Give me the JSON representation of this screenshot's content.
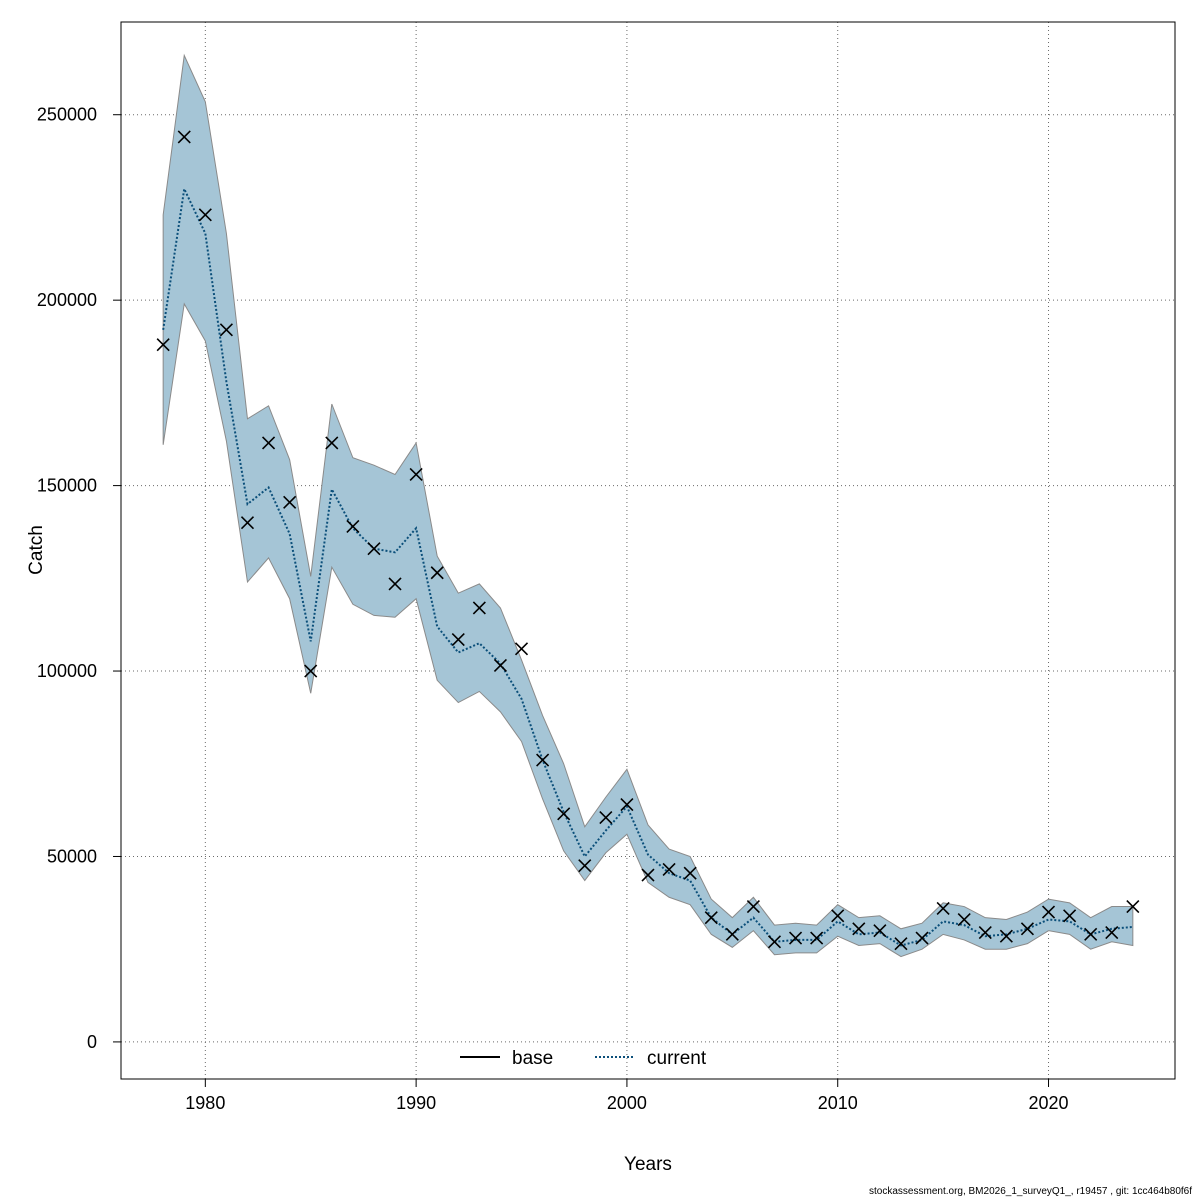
{
  "chart_data": {
    "type": "line",
    "title": "",
    "xlabel": "Years",
    "ylabel": "Catch",
    "xlim": [
      1976,
      2026
    ],
    "ylim": [
      -10000,
      275000
    ],
    "x_ticks": [
      1980,
      1990,
      2000,
      2010,
      2020
    ],
    "y_ticks": [
      0,
      50000,
      100000,
      150000,
      200000,
      250000
    ],
    "grid": true,
    "legend_position": "bottom-center",
    "years": [
      1978,
      1979,
      1980,
      1981,
      1982,
      1983,
      1984,
      1985,
      1986,
      1987,
      1988,
      1989,
      1990,
      1991,
      1992,
      1993,
      1994,
      1995,
      1996,
      1997,
      1998,
      1999,
      2000,
      2001,
      2002,
      2003,
      2004,
      2005,
      2006,
      2007,
      2008,
      2009,
      2010,
      2011,
      2012,
      2013,
      2014,
      2015,
      2016,
      2017,
      2018,
      2019,
      2020,
      2021,
      2022,
      2023,
      2024
    ],
    "observed": [
      188000,
      244000,
      223000,
      192000,
      140000,
      161500,
      145500,
      100000,
      161500,
      139000,
      133000,
      123500,
      153000,
      126500,
      108500,
      117000,
      101500,
      106000,
      76000,
      61500,
      47500,
      60500,
      64000,
      45000,
      46500,
      45500,
      33500,
      29000,
      36500,
      27000,
      28000,
      28000,
      34000,
      30500,
      30000,
      26500,
      28000,
      36000,
      33000,
      29500,
      28500,
      30500,
      35000,
      34000,
      29000,
      29500,
      36500
    ],
    "ci_upper": [
      223000,
      266000,
      253500,
      218000,
      168000,
      171500,
      157000,
      125500,
      172000,
      157500,
      155500,
      153000,
      161500,
      131000,
      121000,
      123500,
      117000,
      103000,
      88000,
      75000,
      58000,
      66000,
      73500,
      58500,
      52000,
      50000,
      38500,
      33500,
      39000,
      31500,
      32000,
      31500,
      37000,
      33500,
      34000,
      30500,
      32000,
      37500,
      36500,
      33500,
      33000,
      35000,
      38500,
      37500,
      33500,
      36500,
      36500
    ],
    "ci_lower": [
      161000,
      199000,
      189000,
      162000,
      124000,
      130500,
      119500,
      94000,
      128000,
      118000,
      115000,
      114500,
      119500,
      97500,
      91500,
      94500,
      89000,
      81000,
      65500,
      51500,
      43500,
      51000,
      56000,
      43000,
      39000,
      37000,
      29000,
      25500,
      30000,
      23500,
      24000,
      24000,
      28500,
      26000,
      26500,
      23000,
      25000,
      29000,
      27500,
      25000,
      25000,
      26500,
      30000,
      29000,
      25000,
      27000,
      26000
    ],
    "series": [
      {
        "name": "base",
        "color": "#000000",
        "dash": "solid",
        "values": []
      },
      {
        "name": "current",
        "color": "#0b4f7a",
        "dash": "dotted",
        "values": [
          192000,
          230000,
          218000,
          178000,
          145000,
          149500,
          137000,
          108000,
          149000,
          138500,
          133000,
          132000,
          138500,
          112000,
          105000,
          107500,
          102000,
          92500,
          76000,
          62000,
          50000,
          57000,
          63500,
          50500,
          45500,
          43500,
          33500,
          29000,
          33500,
          27000,
          27500,
          27500,
          32500,
          29000,
          29500,
          26000,
          27500,
          32500,
          31500,
          28500,
          29000,
          30500,
          33000,
          32500,
          29000,
          30500,
          31000
        ]
      }
    ],
    "band_color": "#a5c5d6",
    "band_edge_color": "#8a8a8a",
    "marker": "x"
  },
  "footer": {
    "text": "stockassessment.org, BM2026_1_surveyQ1_, r19457 , git: 1cc464b80f6f"
  }
}
